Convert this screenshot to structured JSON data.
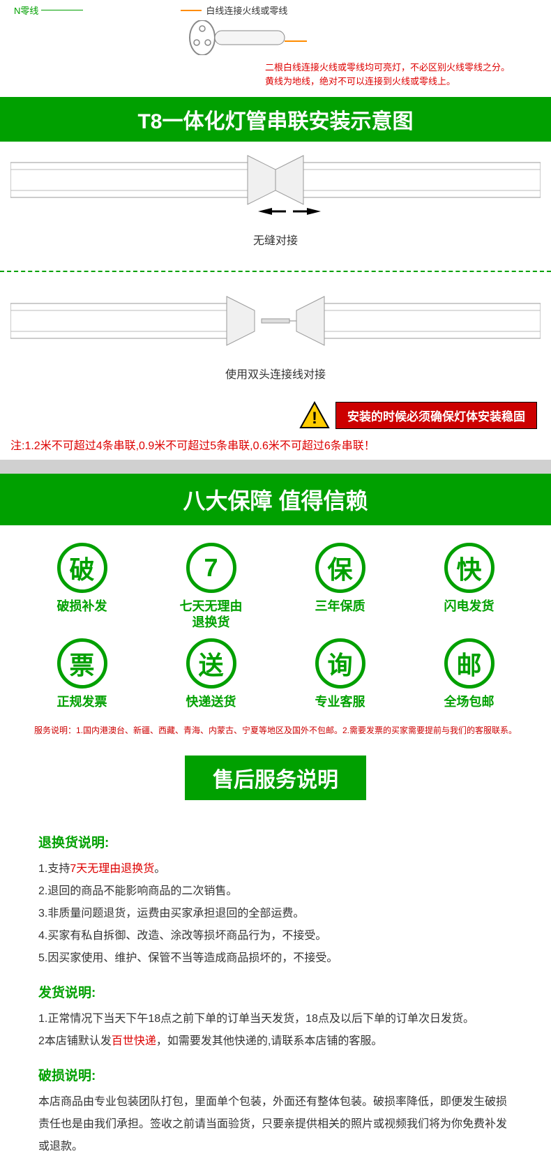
{
  "colors": {
    "green": "#00a000",
    "red": "#d00",
    "banner_red": "#c00",
    "grey": "#d0d0d0"
  },
  "top": {
    "n_label": "N零线",
    "white_label": "白线连接火线或零线",
    "note1": "二根白线连接火线或零线均可亮灯，不必区别火线零线之分。",
    "note2": "黄线为地线，绝对不可以连接到火线或零线上。"
  },
  "title1": "T8一体化灯管串联安装示意图",
  "diagram": {
    "label1": "无缝对接",
    "label2": "使用双头连接线对接"
  },
  "warning_text": "安装的时候必须确保灯体安装稳固",
  "limit_text": "注:1.2米不可超过4条串联,0.9米不可超过5条串联,0.6米不可超过6条串联！",
  "guarantee_title": "八大保障 值得信赖",
  "guarantees": [
    {
      "char": "破",
      "label": "破损补发"
    },
    {
      "char": "7",
      "label": "七天无理由\n退换货"
    },
    {
      "char": "保",
      "label": "三年保质"
    },
    {
      "char": "快",
      "label": "闪电发货"
    },
    {
      "char": "票",
      "label": "正规发票"
    },
    {
      "char": "送",
      "label": "快递送货"
    },
    {
      "char": "询",
      "label": "专业客服"
    },
    {
      "char": "邮",
      "label": "全场包邮"
    }
  ],
  "service_note": "服务说明：1.国内港澳台、新疆、西藏、青海、内蒙古、宁夏等地区及国外不包邮。2.需要发票的买家需要提前与我们的客服联系。",
  "aftersale_title": "售后服务说明",
  "policy": {
    "return_h": "退换货说明:",
    "return_1a": "1.支持",
    "return_1b": "7天无理由退换货",
    "return_1c": "。",
    "return_2": "2.退回的商品不能影响商品的二次销售。",
    "return_3": "3.非质量问题退货，运费由买家承担退回的全部运费。",
    "return_4": "4.买家有私自拆御、改造、涂改等损坏商品行为，不接受。",
    "return_5": "5.因买家使用、维护、保管不当等造成商品损坏的，不接受。",
    "ship_h": "发货说明:",
    "ship_1": "1.正常情况下当天下午18点之前下单的订单当天发货，18点及以后下单的订单次日发货。",
    "ship_2a": "2本店铺默认发",
    "ship_2b": "百世快递",
    "ship_2c": "，如需要发其他快递的,请联系本店铺的客服。",
    "damage_h": "破损说明:",
    "damage_1": "本店商品由专业包装团队打包，里面单个包装，外面还有整体包装。破损率降低，即便发生破损责任也是由我们承担。签收之前请当面验货，只要亲提供相关的照片或视频我们将为你免费补发或退款。"
  }
}
